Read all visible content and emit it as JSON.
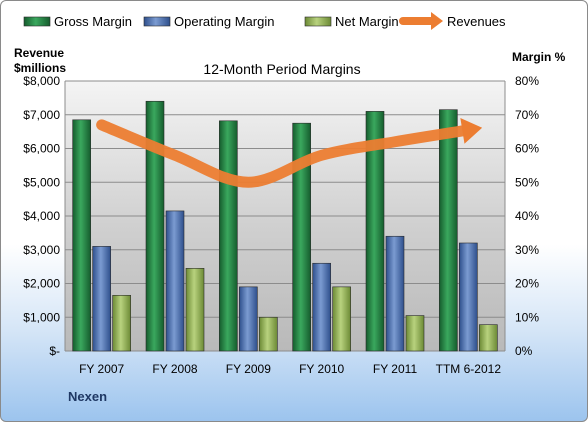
{
  "chart_data": {
    "type": "bar",
    "title": "12-Month Period Margins",
    "categories": [
      "FY 2007",
      "FY 2008",
      "FY 2009",
      "FY 2010",
      "FY 2011",
      "TTM 6-2012"
    ],
    "left_axis": {
      "title_lines": [
        "Revenue",
        "$millions"
      ],
      "range": [
        0,
        8000
      ],
      "ticks": [
        "$-",
        "$1,000",
        "$2,000",
        "$3,000",
        "$4,000",
        "$5,000",
        "$6,000",
        "$7,000",
        "$8,000"
      ]
    },
    "right_axis": {
      "title": "Margin %",
      "range": [
        0,
        80
      ],
      "ticks": [
        "0%",
        "10%",
        "20%",
        "30%",
        "40%",
        "50%",
        "60%",
        "70%",
        "80%"
      ]
    },
    "series": [
      {
        "name": "Gross Margin",
        "axis": "right",
        "type": "bar",
        "color": "#1f7a3e",
        "values": [
          68.5,
          74,
          68.2,
          67.5,
          71,
          71.5
        ]
      },
      {
        "name": "Operating Margin",
        "axis": "right",
        "type": "bar",
        "color": "#4a6fb0",
        "values": [
          31,
          41.5,
          19,
          26,
          34,
          32
        ]
      },
      {
        "name": "Net Margin",
        "axis": "right",
        "type": "bar",
        "color": "#8fad52",
        "values": [
          16.5,
          24.5,
          10,
          19,
          10.5,
          7.8
        ]
      },
      {
        "name": "Revenues",
        "axis": "left",
        "type": "line",
        "color": "#ec7d31",
        "values": [
          6700,
          5800,
          5000,
          5800,
          6200,
          6550
        ]
      }
    ],
    "grid": true,
    "legend_position": "top"
  },
  "footer_label": "Nexen"
}
